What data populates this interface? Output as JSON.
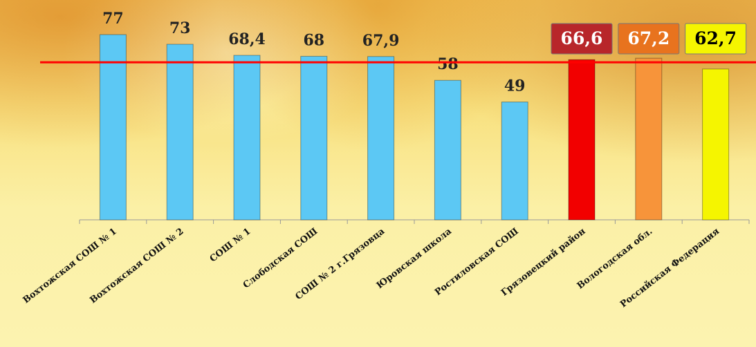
{
  "chart_data": {
    "type": "bar",
    "categories": [
      "Вохтожская СОШ № 1",
      "Вохтожская СОШ № 2",
      "СОШ № 1",
      "Слободская СОШ",
      "СОШ № 2 г.Грязовца",
      "Юровская школа",
      "Ростиловская СОШ",
      "Грязовецкий район",
      "Вологодская обл.",
      "Российская Федерация"
    ],
    "values": [
      77,
      73,
      68.4,
      68,
      67.9,
      58,
      49,
      66.6,
      67.2,
      62.7
    ],
    "value_labels": [
      "77",
      "73",
      "68,4",
      "68",
      "67,9",
      "58",
      "49",
      "66,6",
      "67,2",
      "62,7"
    ],
    "colors": [
      "#5cc8f4",
      "#5cc8f4",
      "#5cc8f4",
      "#5cc8f4",
      "#5cc8f4",
      "#5cc8f4",
      "#5cc8f4",
      "#f20000",
      "#f7943a",
      "#f5f500"
    ],
    "ylim": [
      0,
      91.4
    ],
    "reference_line": {
      "value": 65.5,
      "color": "#ff0000"
    }
  }
}
